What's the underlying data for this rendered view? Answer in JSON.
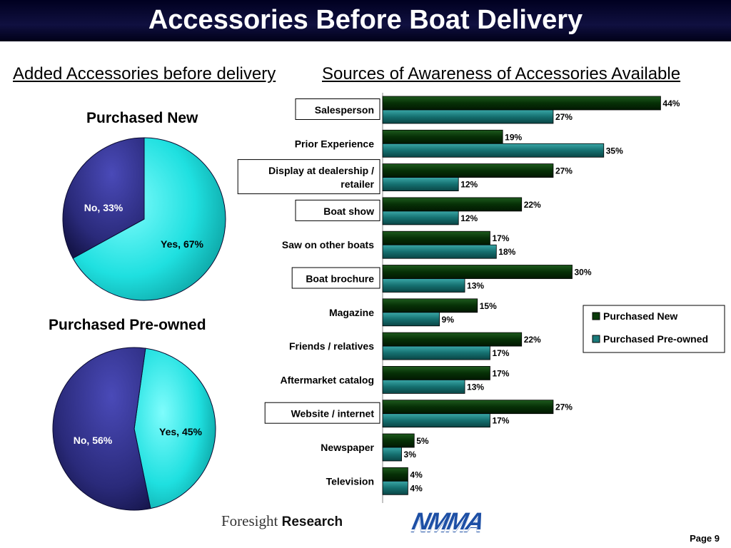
{
  "header": {
    "title": "Accessories Before Boat Delivery"
  },
  "left_section_title": "Added Accessories before delivery",
  "right_section_title": "Sources of Awareness of Accessories Available",
  "pie_new": {
    "title": "Purchased New"
  },
  "pie_preowned": {
    "title": "Purchased Pre-owned"
  },
  "footer": {
    "page": "Page 9",
    "logo_foresight_regular": "Foresight",
    "logo_foresight_bold": "Research",
    "logo_nmma": "NMMA"
  },
  "colors": {
    "new_bar": "#0a3a0a",
    "preowned_bar": "#1a7a7a",
    "yes_slice": "#22d8d8",
    "no_slice": "#2a2a7a"
  },
  "chart_data": [
    {
      "type": "pie",
      "title": "Purchased New",
      "slices": [
        {
          "label": "Yes, 67%",
          "value": 67
        },
        {
          "label": "No, 33%",
          "value": 33
        }
      ]
    },
    {
      "type": "pie",
      "title": "Purchased Pre-owned",
      "slices": [
        {
          "label": "Yes, 45%",
          "value": 45
        },
        {
          "label": "No, 56%",
          "value": 56
        }
      ]
    },
    {
      "type": "bar",
      "orientation": "horizontal",
      "categories": [
        "Salesperson",
        "Prior Experience",
        "Display at dealership / retailer",
        "Boat show",
        "Saw on other boats",
        "Boat brochure",
        "Magazine",
        "Friends / relatives",
        "Aftermarket catalog",
        "Website / internet",
        "Newspaper",
        "Television"
      ],
      "boxed_categories": [
        "Salesperson",
        "Display at dealership / retailer",
        "Boat show",
        "Boat brochure",
        "Website / internet"
      ],
      "series": [
        {
          "name": "Purchased New",
          "values": [
            44,
            19,
            27,
            22,
            17,
            30,
            15,
            22,
            17,
            27,
            5,
            4
          ],
          "labels": [
            "44%",
            "19%",
            "27%",
            "22%",
            "17%",
            "30%",
            "15%",
            "22%",
            "17%",
            "27%",
            "5%",
            "4%"
          ]
        },
        {
          "name": "Purchased Pre-owned",
          "values": [
            27,
            35,
            12,
            12,
            18,
            13,
            9,
            17,
            13,
            17,
            3,
            4
          ],
          "labels": [
            "27%",
            "35%",
            "12%",
            "12%",
            "18%",
            "13%",
            "9%",
            "17%",
            "13%",
            "17%",
            "3%",
            "4%"
          ]
        }
      ],
      "xlim": [
        0,
        50
      ],
      "legend": "right"
    }
  ]
}
